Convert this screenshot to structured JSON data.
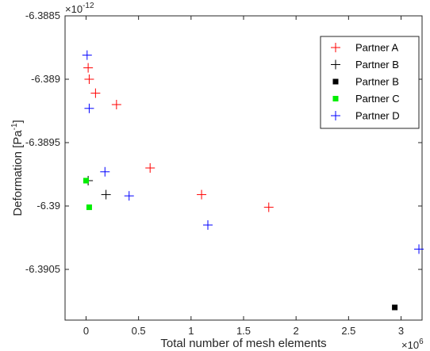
{
  "chart_data": {
    "type": "scatter",
    "xlabel": "Total number of mesh elements",
    "ylabel": "Deformation [Pa",
    "ylabel_sup": "-1",
    "ylabel_close": "]",
    "x_exponent_base": "×10",
    "x_exponent_power": "6",
    "y_exponent_base": "×10",
    "y_exponent_power": "-12",
    "xlim": [
      -0.2,
      3.2
    ],
    "ylim": [
      -6.3909,
      -6.3885
    ],
    "xticks": [
      0,
      0.5,
      1,
      1.5,
      2,
      2.5,
      3
    ],
    "xtick_labels": [
      "0",
      "0.5",
      "1",
      "1.5",
      "2",
      "2.5",
      "3"
    ],
    "yticks": [
      -6.3885,
      -6.389,
      -6.3895,
      -6.39,
      -6.3905
    ],
    "ytick_labels": [
      "-6.3885",
      "-6.389",
      "-6.3895",
      "-6.39",
      "-6.3905"
    ],
    "grid": false,
    "legend_position": "top-right",
    "series": [
      {
        "name": "Partner A",
        "marker": "plus",
        "color": "#ff0000",
        "x": [
          0.02,
          0.03,
          0.09,
          0.29,
          0.61,
          1.1,
          1.74
        ],
        "y": [
          -6.38891,
          -6.389,
          -6.38911,
          -6.3892,
          -6.3897,
          -6.38991,
          -6.39001
        ]
      },
      {
        "name": "Partner B",
        "marker": "plus",
        "color": "#000000",
        "x": [
          0.02,
          0.19
        ],
        "y": [
          -6.3898,
          -6.38991
        ]
      },
      {
        "name": "Partner B",
        "marker": "square",
        "color": "#000000",
        "x": [
          2.94
        ],
        "y": [
          -6.3908
        ]
      },
      {
        "name": "Partner C",
        "marker": "square",
        "color": "#00ee00",
        "x": [
          0.0,
          0.03
        ],
        "y": [
          -6.3898,
          -6.39001
        ]
      },
      {
        "name": "Partner D",
        "marker": "plus",
        "color": "#0000ff",
        "x": [
          0.01,
          0.03,
          0.18,
          0.41,
          1.16,
          3.17
        ],
        "y": [
          -6.38881,
          -6.38923,
          -6.38973,
          -6.38992,
          -6.39015,
          -6.39034
        ]
      }
    ]
  }
}
